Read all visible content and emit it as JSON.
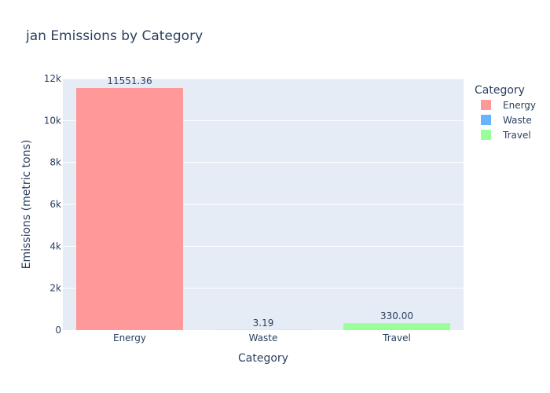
{
  "chart_data": {
    "type": "bar",
    "title": "jan Emissions by Category",
    "xlabel": "Category",
    "ylabel": "Emissions (metric tons)",
    "categories": [
      "Energy",
      "Waste",
      "Travel"
    ],
    "values": [
      11551.36,
      3.19,
      330.0
    ],
    "data_labels": [
      "11551.36",
      "3.19",
      "330.00"
    ],
    "colors": [
      "#ff9999",
      "#66b3ff",
      "#99ff99"
    ],
    "ylim": [
      0,
      12000
    ],
    "y_ticks": [
      0,
      2000,
      4000,
      6000,
      8000,
      10000,
      12000
    ],
    "y_tick_labels": [
      "0",
      "2k",
      "4k",
      "6k",
      "8k",
      "10k",
      "12k"
    ],
    "grid": true,
    "legend": {
      "title": "Category",
      "placement": "top-right",
      "items": [
        "Energy",
        "Waste",
        "Travel"
      ]
    },
    "plot_bgcolor": "#e5ecf6"
  }
}
